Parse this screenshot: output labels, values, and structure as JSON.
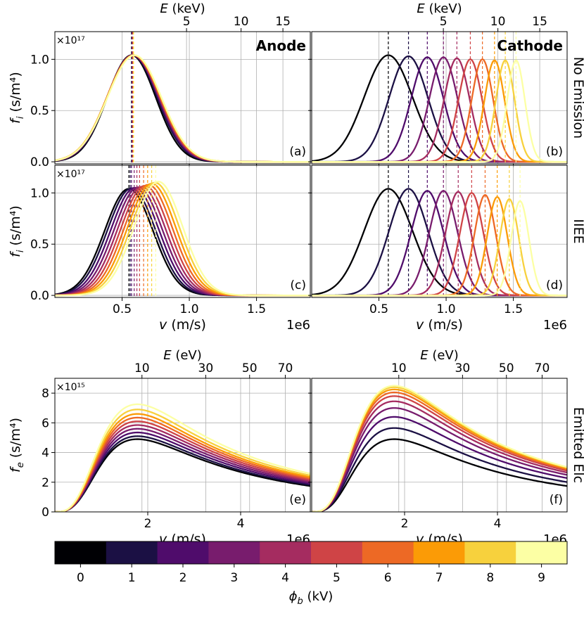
{
  "chart_data": {
    "type": "line",
    "title": "",
    "colorbar": {
      "label": "ϕ_b (kV)",
      "ticks": [
        "0",
        "1",
        "2",
        "3",
        "4",
        "5",
        "6",
        "7",
        "8",
        "9"
      ],
      "colors": [
        "#000004",
        "#1b1044",
        "#4f0c6b",
        "#781c6d",
        "#a52c60",
        "#cf4446",
        "#ed6925",
        "#fb9b06",
        "#f7d13d",
        "#fcffa4"
      ]
    },
    "x_multiplier_label": "1e6",
    "panels": [
      {
        "id": "a",
        "label": "(a)",
        "title": "Anode",
        "row_label": "",
        "ylabel": "f_i (s/m⁴)",
        "y_multiplier": "×10¹⁷",
        "xlabel": "",
        "xlim": [
          0,
          1.9
        ],
        "ylim": [
          -0.02,
          1.27
        ],
        "xticks": [
          0.5,
          1.0,
          1.5
        ],
        "xtick_labels": [
          "",
          "",
          ""
        ],
        "yticks": [
          0.0,
          0.5,
          1.0
        ],
        "ytick_labels": [
          "0.0",
          "0.5",
          "1.0"
        ],
        "top_axis": {
          "label": "E (keV)",
          "ticks": [
            5,
            10,
            15
          ],
          "tick_labels": [
            "5",
            "10",
            "15"
          ]
        },
        "series": [
          {
            "name": "0 kV",
            "mu": 0.57,
            "sigma": 0.18,
            "peak": 1.04,
            "cutoff": 0.57
          },
          {
            "name": "1 kV",
            "mu": 0.575,
            "sigma": 0.186,
            "peak": 1.04,
            "cutoff": 0.572
          },
          {
            "name": "2 kV",
            "mu": 0.578,
            "sigma": 0.19,
            "peak": 1.04,
            "cutoff": 0.574
          },
          {
            "name": "3 kV",
            "mu": 0.58,
            "sigma": 0.193,
            "peak": 1.04,
            "cutoff": 0.576
          },
          {
            "name": "4 kV",
            "mu": 0.582,
            "sigma": 0.195,
            "peak": 1.04,
            "cutoff": 0.578
          },
          {
            "name": "5 kV",
            "mu": 0.584,
            "sigma": 0.197,
            "peak": 1.04,
            "cutoff": 0.58
          },
          {
            "name": "6 kV",
            "mu": 0.586,
            "sigma": 0.198,
            "peak": 1.04,
            "cutoff": 0.582
          },
          {
            "name": "7 kV",
            "mu": 0.588,
            "sigma": 0.2,
            "peak": 1.04,
            "cutoff": 0.584
          },
          {
            "name": "8 kV",
            "mu": 0.59,
            "sigma": 0.2,
            "peak": 1.04,
            "cutoff": 0.586
          },
          {
            "name": "9 kV",
            "mu": 0.592,
            "sigma": 0.2,
            "peak": 1.04,
            "cutoff": 0.588
          }
        ]
      },
      {
        "id": "b",
        "label": "(b)",
        "title": "Cathode",
        "row_label": "No Emission",
        "ylabel": "",
        "y_multiplier": "",
        "xlabel": "",
        "xlim": [
          0,
          1.9
        ],
        "ylim": [
          -0.02,
          1.27
        ],
        "xticks": [
          0.5,
          1.0,
          1.5
        ],
        "xtick_labels": [
          "",
          "",
          ""
        ],
        "yticks": [
          0.0,
          0.5,
          1.0
        ],
        "ytick_labels": [
          "",
          "",
          ""
        ],
        "top_axis": {
          "label": "E (keV)",
          "ticks": [
            5,
            10,
            15
          ],
          "tick_labels": [
            "5",
            "10",
            "15"
          ]
        },
        "series": [
          {
            "name": "0 kV",
            "mu": 0.57,
            "sigma": 0.18,
            "peak": 1.04,
            "cutoff": 0.57
          },
          {
            "name": "1 kV",
            "mu": 0.72,
            "sigma": 0.145,
            "peak": 1.03,
            "cutoff": 0.72
          },
          {
            "name": "2 kV",
            "mu": 0.86,
            "sigma": 0.12,
            "peak": 1.02,
            "cutoff": 0.86
          },
          {
            "name": "3 kV",
            "mu": 0.98,
            "sigma": 0.105,
            "peak": 1.02,
            "cutoff": 0.98
          },
          {
            "name": "4 kV",
            "mu": 1.08,
            "sigma": 0.095,
            "peak": 1.01,
            "cutoff": 1.08
          },
          {
            "name": "5 kV",
            "mu": 1.18,
            "sigma": 0.088,
            "peak": 1.0,
            "cutoff": 1.18
          },
          {
            "name": "6 kV",
            "mu": 1.27,
            "sigma": 0.08,
            "peak": 1.0,
            "cutoff": 1.27
          },
          {
            "name": "7 kV",
            "mu": 1.36,
            "sigma": 0.075,
            "peak": 0.99,
            "cutoff": 1.36
          },
          {
            "name": "8 kV",
            "mu": 1.44,
            "sigma": 0.07,
            "peak": 0.99,
            "cutoff": 1.44
          },
          {
            "name": "9 kV",
            "mu": 1.52,
            "sigma": 0.066,
            "peak": 0.99,
            "cutoff": 1.52
          }
        ]
      },
      {
        "id": "c",
        "label": "(c)",
        "title": "",
        "row_label": "",
        "ylabel": "f_i (s/m⁴)",
        "y_multiplier": "×10¹⁷",
        "xlabel": "v (m/s)",
        "xlim": [
          0,
          1.9
        ],
        "ylim": [
          -0.02,
          1.27
        ],
        "xticks": [
          0.5,
          1.0,
          1.5
        ],
        "xtick_labels": [
          "0.5",
          "1.0",
          "1.5"
        ],
        "yticks": [
          0.0,
          0.5,
          1.0
        ],
        "ytick_labels": [
          "0.0",
          "0.5",
          "1.0"
        ],
        "series": [
          {
            "name": "0 kV",
            "mu": 0.55,
            "sigma": 0.18,
            "peak": 1.04,
            "cutoff": 0.55
          },
          {
            "name": "1 kV",
            "mu": 0.57,
            "sigma": 0.18,
            "peak": 1.045,
            "cutoff": 0.56
          },
          {
            "name": "2 kV",
            "mu": 0.595,
            "sigma": 0.18,
            "peak": 1.05,
            "cutoff": 0.57
          },
          {
            "name": "3 kV",
            "mu": 0.62,
            "sigma": 0.18,
            "peak": 1.055,
            "cutoff": 0.59
          },
          {
            "name": "4 kV",
            "mu": 0.645,
            "sigma": 0.18,
            "peak": 1.06,
            "cutoff": 0.61
          },
          {
            "name": "5 kV",
            "mu": 0.67,
            "sigma": 0.18,
            "peak": 1.07,
            "cutoff": 0.63
          },
          {
            "name": "6 kV",
            "mu": 0.695,
            "sigma": 0.18,
            "peak": 1.08,
            "cutoff": 0.66
          },
          {
            "name": "7 kV",
            "mu": 0.72,
            "sigma": 0.18,
            "peak": 1.09,
            "cutoff": 0.69
          },
          {
            "name": "8 kV",
            "mu": 0.745,
            "sigma": 0.18,
            "peak": 1.1,
            "cutoff": 0.72
          },
          {
            "name": "9 kV",
            "mu": 0.77,
            "sigma": 0.18,
            "peak": 1.11,
            "cutoff": 0.75
          }
        ]
      },
      {
        "id": "d",
        "label": "(d)",
        "title": "",
        "row_label": "IIEE",
        "ylabel": "",
        "y_multiplier": "",
        "xlabel": "v (m/s)",
        "xlim": [
          0,
          1.9
        ],
        "ylim": [
          -0.02,
          1.27
        ],
        "xticks": [
          0.5,
          1.0,
          1.5
        ],
        "xtick_labels": [
          "0.5",
          "1.0",
          "1.5"
        ],
        "yticks": [
          0.0,
          0.5,
          1.0
        ],
        "ytick_labels": [
          "",
          "",
          ""
        ],
        "series": [
          {
            "name": "0 kV",
            "mu": 0.57,
            "sigma": 0.18,
            "peak": 1.04,
            "cutoff": 0.57
          },
          {
            "name": "1 kV",
            "mu": 0.72,
            "sigma": 0.145,
            "peak": 1.04,
            "cutoff": 0.72
          },
          {
            "name": "2 kV",
            "mu": 0.86,
            "sigma": 0.12,
            "peak": 1.02,
            "cutoff": 0.86
          },
          {
            "name": "3 kV",
            "mu": 0.98,
            "sigma": 0.105,
            "peak": 1.02,
            "cutoff": 0.98
          },
          {
            "name": "4 kV",
            "mu": 1.09,
            "sigma": 0.095,
            "peak": 1.01,
            "cutoff": 1.09
          },
          {
            "name": "5 kV",
            "mu": 1.19,
            "sigma": 0.088,
            "peak": 1.0,
            "cutoff": 1.19
          },
          {
            "name": "6 kV",
            "mu": 1.29,
            "sigma": 0.08,
            "peak": 0.98,
            "cutoff": 1.29
          },
          {
            "name": "7 kV",
            "mu": 1.38,
            "sigma": 0.075,
            "peak": 0.96,
            "cutoff": 1.38
          },
          {
            "name": "8 kV",
            "mu": 1.47,
            "sigma": 0.07,
            "peak": 0.94,
            "cutoff": 1.47
          },
          {
            "name": "9 kV",
            "mu": 1.55,
            "sigma": 0.066,
            "peak": 0.92,
            "cutoff": 1.55
          }
        ]
      },
      {
        "id": "e",
        "label": "(e)",
        "title": "",
        "row_label": "",
        "ylabel": "f_e (s/m⁴)",
        "y_multiplier": "×10¹⁵",
        "xlabel": "v (m/s)",
        "xlim": [
          0,
          5.5
        ],
        "ylim": [
          0,
          9
        ],
        "xticks": [
          2,
          4
        ],
        "xtick_labels": [
          "2",
          "4"
        ],
        "yticks": [
          0,
          2,
          4,
          6,
          8
        ],
        "ytick_labels": [
          "0",
          "2",
          "4",
          "6",
          "8"
        ],
        "top_axis": {
          "label": "E (eV)",
          "ticks": [
            10,
            30,
            50,
            70
          ],
          "tick_labels": [
            "10",
            "30",
            "50",
            "70"
          ]
        },
        "series": [
          {
            "name": "0 kV",
            "peak": 4.9
          },
          {
            "name": "1 kV",
            "peak": 5.1
          },
          {
            "name": "2 kV",
            "peak": 5.35
          },
          {
            "name": "3 kV",
            "peak": 5.6
          },
          {
            "name": "4 kV",
            "peak": 5.85
          },
          {
            "name": "5 kV",
            "peak": 6.1
          },
          {
            "name": "6 kV",
            "peak": 6.35
          },
          {
            "name": "7 kV",
            "peak": 6.6
          },
          {
            "name": "8 kV",
            "peak": 6.9
          },
          {
            "name": "9 kV",
            "peak": 7.25
          }
        ]
      },
      {
        "id": "f",
        "label": "(f)",
        "title": "",
        "row_label": "Emitted Elc",
        "ylabel": "",
        "y_multiplier": "",
        "xlabel": "v (m/s)",
        "xlim": [
          0,
          5.5
        ],
        "ylim": [
          0,
          9
        ],
        "xticks": [
          2,
          4
        ],
        "xtick_labels": [
          "2",
          "4"
        ],
        "yticks": [
          0,
          2,
          4,
          6,
          8
        ],
        "ytick_labels": [
          "",
          "",
          "",
          "",
          ""
        ],
        "top_axis": {
          "label": "E (eV)",
          "ticks": [
            10,
            30,
            50,
            70
          ],
          "tick_labels": [
            "10",
            "30",
            "50",
            "70"
          ]
        },
        "series": [
          {
            "name": "0 kV",
            "peak": 4.9
          },
          {
            "name": "1 kV",
            "peak": 5.65
          },
          {
            "name": "2 kV",
            "peak": 6.4
          },
          {
            "name": "3 kV",
            "peak": 7.0
          },
          {
            "name": "4 kV",
            "peak": 7.45
          },
          {
            "name": "5 kV",
            "peak": 7.8
          },
          {
            "name": "6 kV",
            "peak": 8.05
          },
          {
            "name": "7 kV",
            "peak": 8.25
          },
          {
            "name": "8 kV",
            "peak": 8.4
          },
          {
            "name": "9 kV",
            "peak": 8.5
          }
        ]
      }
    ]
  }
}
